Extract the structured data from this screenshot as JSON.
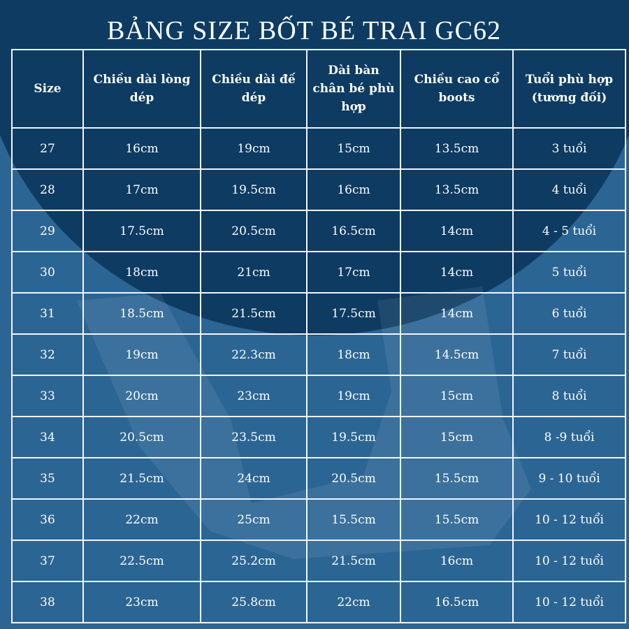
{
  "title": "BẢNG SIZE BỐT BÉ TRAI GC62",
  "table": {
    "header": [
      "Size",
      "Chiều dài lòng dép",
      "Chiều dài đế dép",
      "Dài bàn chân bé phù hợp",
      "Chiều cao cổ boots",
      "Tuổi phù hợp (tương đối)"
    ],
    "rows": [
      [
        "27",
        "16cm",
        "19cm",
        "15cm",
        "13.5cm",
        "3 tuổi"
      ],
      [
        "28",
        "17cm",
        "19.5cm",
        "16cm",
        "13.5cm",
        "4 tuổi"
      ],
      [
        "29",
        "17.5cm",
        "20.5cm",
        "16.5cm",
        "14cm",
        "4 - 5 tuổi"
      ],
      [
        "30",
        "18cm",
        "21cm",
        "17cm",
        "14cm",
        "5 tuổi"
      ],
      [
        "31",
        "18.5cm",
        "21.5cm",
        "17.5cm",
        "14cm",
        "6 tuổi"
      ],
      [
        "32",
        "19cm",
        "22.3cm",
        "18cm",
        "14.5cm",
        "7 tuổi"
      ],
      [
        "33",
        "20cm",
        "23cm",
        "19cm",
        "15cm",
        "8 tuổi"
      ],
      [
        "34",
        "20.5cm",
        "23.5cm",
        "19.5cm",
        "15cm",
        "8 -9 tuổi"
      ],
      [
        "35",
        "21.5cm",
        "24cm",
        "20.5cm",
        "15.5cm",
        "9 - 10 tuổi"
      ],
      [
        "36",
        "22cm",
        "25cm",
        "15.5cm",
        "15.5cm",
        "10 - 12 tuổi"
      ],
      [
        "37",
        "22.5cm",
        "25.2cm",
        "21.5cm",
        "16cm",
        "10 - 12 tuổi"
      ],
      [
        "38",
        "23cm",
        "25.8cm",
        "22cm",
        "16.5cm",
        "10 - 12 tuổi"
      ]
    ]
  }
}
